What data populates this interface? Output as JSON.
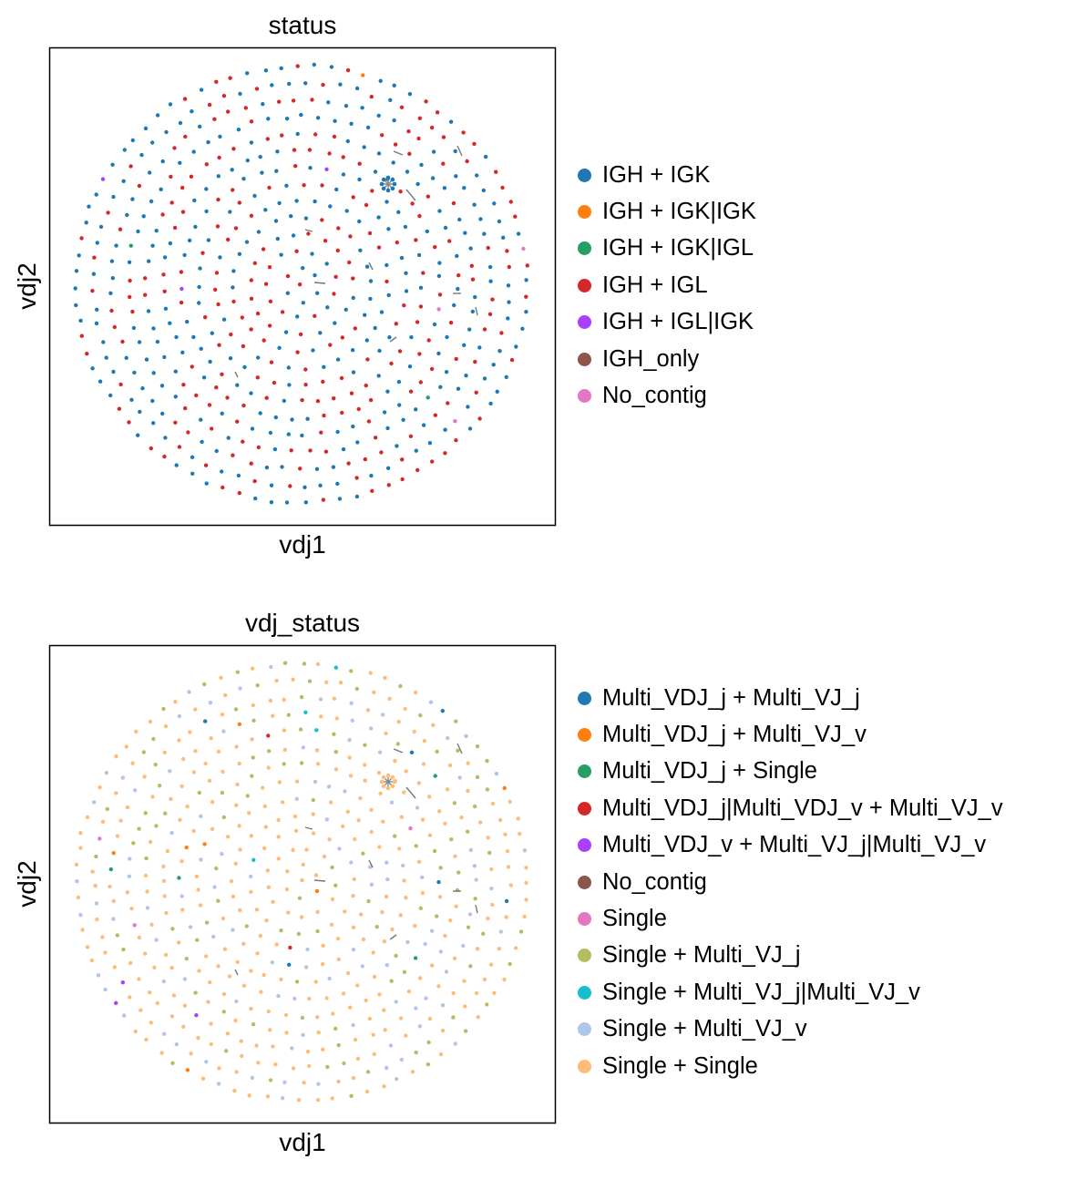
{
  "panels": [
    {
      "title": "status",
      "xlabel": "vdj1",
      "ylabel": "vdj2",
      "legend": [
        {
          "label": "IGH + IGK",
          "color": "#1f77b4"
        },
        {
          "label": "IGH + IGK|IGK",
          "color": "#ff7f0e"
        },
        {
          "label": "IGH + IGK|IGL",
          "color": "#279e68"
        },
        {
          "label": "IGH + IGL",
          "color": "#d62728"
        },
        {
          "label": "IGH + IGL|IGK",
          "color": "#aa40fc"
        },
        {
          "label": "IGH_only",
          "color": "#8c564b"
        },
        {
          "label": "No_contig",
          "color": "#e377c2"
        }
      ]
    },
    {
      "title": "vdj_status",
      "xlabel": "vdj1",
      "ylabel": "vdj2",
      "legend": [
        {
          "label": "Multi_VDJ_j + Multi_VJ_j",
          "color": "#1f77b4"
        },
        {
          "label": "Multi_VDJ_j + Multi_VJ_v",
          "color": "#ff7f0e"
        },
        {
          "label": "Multi_VDJ_j + Single",
          "color": "#279e68"
        },
        {
          "label": "Multi_VDJ_j|Multi_VDJ_v + Multi_VJ_v",
          "color": "#d62728"
        },
        {
          "label": "Multi_VDJ_v + Multi_VJ_j|Multi_VJ_v",
          "color": "#aa40fc"
        },
        {
          "label": "No_contig",
          "color": "#8c564b"
        },
        {
          "label": "Single",
          "color": "#e377c2"
        },
        {
          "label": "Single + Multi_VJ_j",
          "color": "#b5bd61"
        },
        {
          "label": "Single + Multi_VJ_j|Multi_VJ_v",
          "color": "#17becf"
        },
        {
          "label": "Single + Multi_VJ_v",
          "color": "#aec7e8"
        },
        {
          "label": "Single + Single",
          "color": "#ffbb78"
        }
      ]
    }
  ],
  "chart_data": [
    {
      "type": "scatter",
      "title": "status",
      "xlabel": "vdj1",
      "ylabel": "vdj2",
      "layout": "circular cloud of clone nodes",
      "grid": false,
      "legend_position": "right",
      "series": [
        {
          "name": "IGH + IGK",
          "share": 0.55
        },
        {
          "name": "IGH + IGK|IGK",
          "share": 0.003
        },
        {
          "name": "IGH + IGK|IGL",
          "share": 0.005
        },
        {
          "name": "IGH + IGL",
          "share": 0.43
        },
        {
          "name": "IGH + IGL|IGK",
          "share": 0.003
        },
        {
          "name": "IGH_only",
          "share": 0
        },
        {
          "name": "No_contig",
          "share": 0
        }
      ]
    },
    {
      "type": "scatter",
      "title": "vdj_status",
      "xlabel": "vdj1",
      "ylabel": "vdj2",
      "layout": "circular cloud of clone nodes",
      "grid": false,
      "legend_position": "right",
      "series": [
        {
          "name": "Multi_VDJ_j + Multi_VJ_j",
          "share": 0.005
        },
        {
          "name": "Multi_VDJ_j + Multi_VJ_v",
          "share": 0.008
        },
        {
          "name": "Multi_VDJ_j + Single",
          "share": 0.01
        },
        {
          "name": "Multi_VDJ_j|Multi_VDJ_v + Multi_VJ_v",
          "share": 0.003
        },
        {
          "name": "Multi_VDJ_v + Multi_VJ_j|Multi_VJ_v",
          "share": 0.003
        },
        {
          "name": "No_contig",
          "share": 0
        },
        {
          "name": "Single",
          "share": 0.003
        },
        {
          "name": "Single + Multi_VJ_j",
          "share": 0.2
        },
        {
          "name": "Single + Multi_VJ_j|Multi_VJ_v",
          "share": 0.006
        },
        {
          "name": "Single + Multi_VJ_v",
          "share": 0.17
        },
        {
          "name": "Single + Single",
          "share": 0.59
        }
      ]
    }
  ]
}
